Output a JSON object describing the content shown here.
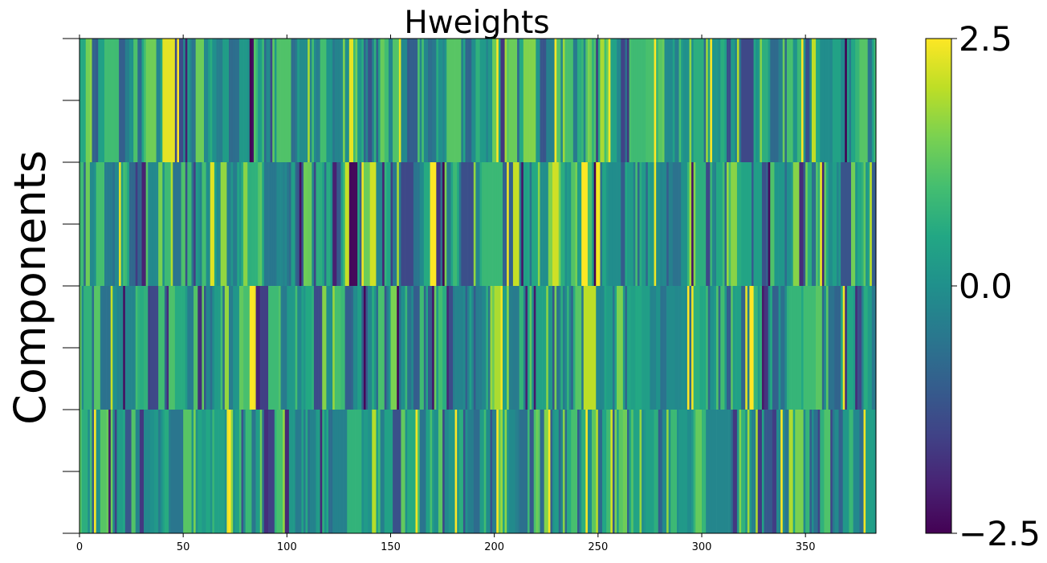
{
  "chart_data": {
    "type": "heatmap",
    "title": "Hweights",
    "xlabel": "",
    "ylabel": "Components",
    "n_rows": 4,
    "n_columns": 384,
    "x_ticks": [
      "0",
      "50",
      "100",
      "150",
      "200",
      "250",
      "300",
      "350"
    ],
    "x_tick_values": [
      0,
      50,
      100,
      150,
      200,
      250,
      300,
      350
    ],
    "xlim": [
      0,
      384
    ],
    "y_ticks_labeled": false,
    "colorbar": {
      "colormap": "viridis",
      "vmin": -2.5,
      "vmax": 2.5,
      "ticks": [
        "2.5",
        "0.0",
        "−2.5"
      ],
      "tick_values": [
        2.5,
        0.0,
        -2.5
      ]
    },
    "notable_columns": [
      {
        "row": 0,
        "column": 82,
        "value": -2.5
      },
      {
        "row": 0,
        "column": 83,
        "value": -2.3
      },
      {
        "row": 0,
        "column": 47,
        "value": 2.5
      },
      {
        "row": 0,
        "column": 201,
        "value": 2.5
      },
      {
        "row": 0,
        "column": 229,
        "value": 2.5
      },
      {
        "row": 0,
        "column": 255,
        "value": 2.5
      },
      {
        "row": 0,
        "column": 277,
        "value": 2.5
      },
      {
        "row": 0,
        "column": 304,
        "value": 2.5
      },
      {
        "row": 0,
        "column": 348,
        "value": 2.5
      },
      {
        "row": 0,
        "column": 369,
        "value": -2.5
      },
      {
        "row": 1,
        "column": 175,
        "value": -2.5
      },
      {
        "row": 1,
        "column": 106,
        "value": -2.3
      },
      {
        "row": 1,
        "column": 213,
        "value": -2.2
      },
      {
        "row": 1,
        "column": 295,
        "value": -2.2
      },
      {
        "row": 1,
        "column": 136,
        "value": 2.4
      },
      {
        "row": 1,
        "column": 206,
        "value": 2.4
      },
      {
        "row": 1,
        "column": 357,
        "value": 2.4
      },
      {
        "row": 2,
        "column": 82,
        "value": 2.5
      },
      {
        "row": 2,
        "column": 83,
        "value": 2.5
      },
      {
        "row": 2,
        "column": 84,
        "value": 2.4
      },
      {
        "row": 2,
        "column": 21,
        "value": -2.3
      },
      {
        "row": 2,
        "column": 137,
        "value": -2.4
      },
      {
        "row": 2,
        "column": 170,
        "value": -2.2
      },
      {
        "row": 2,
        "column": 203,
        "value": 2.4
      },
      {
        "row": 2,
        "column": 295,
        "value": 2.4
      },
      {
        "row": 2,
        "column": 368,
        "value": 2.4
      },
      {
        "row": 3,
        "column": 7,
        "value": 2.5
      },
      {
        "row": 3,
        "column": 14,
        "value": -2.2
      },
      {
        "row": 3,
        "column": 71,
        "value": 2.4
      },
      {
        "row": 3,
        "column": 162,
        "value": 2.4
      },
      {
        "row": 3,
        "column": 181,
        "value": 2.5
      },
      {
        "row": 3,
        "column": 201,
        "value": 2.5
      },
      {
        "row": 3,
        "column": 338,
        "value": 2.5
      },
      {
        "row": 3,
        "column": 378,
        "value": 2.4
      }
    ]
  }
}
